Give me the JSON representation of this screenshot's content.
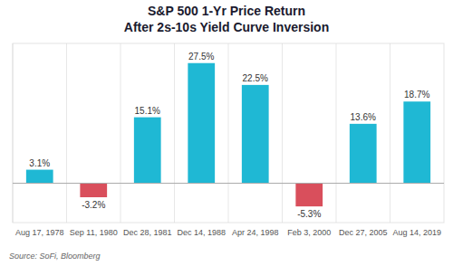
{
  "chart_data": {
    "type": "bar",
    "title": "S&P 500 1-Yr Price Return",
    "subtitle": "After 2s-10s Yield Curve Inversion",
    "categories": [
      "Aug 17, 1978",
      "Sep 11, 1980",
      "Dec 28, 1981",
      "Dec 14, 1988",
      "Apr 24, 1998",
      "Feb 3, 2000",
      "Dec 27, 2005",
      "Aug 14, 2019"
    ],
    "values": [
      3.1,
      -3.2,
      15.1,
      27.5,
      22.5,
      -5.3,
      13.6,
      18.7
    ],
    "value_labels": [
      "3.1%",
      "-3.2%",
      "15.1%",
      "27.5%",
      "22.5%",
      "-5.3%",
      "13.6%",
      "18.7%"
    ],
    "colors": [
      "#1FB8D4",
      "#D94F5C",
      "#1FB8D4",
      "#1FB8D4",
      "#1FB8D4",
      "#D94F5C",
      "#1FB8D4",
      "#1FB8D4"
    ],
    "ylim": [
      -9,
      32
    ],
    "data_labels": true,
    "tick_labels": "x",
    "annotations": [
      "Source: SoFi, Bloomberg"
    ]
  }
}
